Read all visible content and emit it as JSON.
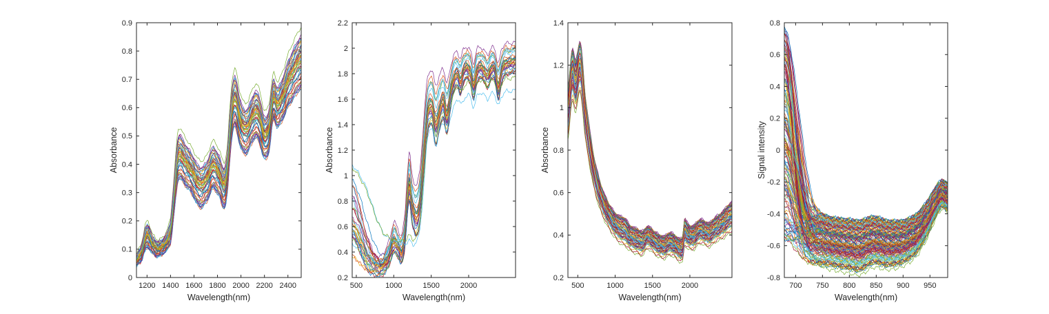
{
  "window": {
    "background": "#ffffff"
  },
  "palette": [
    "#0072BD",
    "#D95319",
    "#EDB120",
    "#7E2F8E",
    "#77AC30",
    "#4DBEEE",
    "#A2142F"
  ],
  "axis_color": "#262626",
  "chart_data": [
    {
      "type": "line",
      "title": "",
      "xlabel": "Wavelength(nm)",
      "ylabel": "Absorbance",
      "xlim": [
        1110,
        2513
      ],
      "ylim": [
        0,
        0.9
      ],
      "xticks": [
        1200,
        1400,
        1600,
        1800,
        2000,
        2200,
        2400
      ],
      "xtick_labels": [
        "1200",
        "1400",
        "1600",
        "1800",
        "2000",
        "2200",
        "2400"
      ],
      "yticks": [
        0,
        0.1,
        0.2,
        0.3,
        0.4,
        0.5,
        0.6,
        0.7,
        0.8,
        0.9
      ],
      "ytick_labels": [
        "0",
        "0.1",
        "0.2",
        "0.3",
        "0.4",
        "0.5",
        "0.6",
        "0.7",
        "0.8",
        "0.9"
      ],
      "grid": false,
      "legend": null,
      "n_lines": 55,
      "noise_amp": 0.0045,
      "band": {
        "x": [
          1100,
          1150,
          1200,
          1250,
          1300,
          1355,
          1400,
          1430,
          1465,
          1520,
          1580,
          1650,
          1710,
          1760,
          1810,
          1857,
          1885,
          1910,
          1930,
          1955,
          1990,
          2025,
          2060,
          2095,
          2130,
          2165,
          2200,
          2240,
          2275,
          2310,
          2350,
          2400,
          2450,
          2513
        ],
        "mean": [
          0.055,
          0.085,
          0.145,
          0.112,
          0.1,
          0.118,
          0.16,
          0.28,
          0.42,
          0.4,
          0.365,
          0.318,
          0.338,
          0.385,
          0.36,
          0.315,
          0.37,
          0.52,
          0.6,
          0.615,
          0.55,
          0.515,
          0.52,
          0.555,
          0.575,
          0.545,
          0.49,
          0.52,
          0.625,
          0.6,
          0.625,
          0.68,
          0.72,
          0.76
        ],
        "halfspread": [
          0.018,
          0.027,
          0.042,
          0.03,
          0.026,
          0.028,
          0.04,
          0.06,
          0.078,
          0.075,
          0.072,
          0.073,
          0.072,
          0.075,
          0.073,
          0.072,
          0.075,
          0.082,
          0.088,
          0.09,
          0.084,
          0.08,
          0.08,
          0.082,
          0.084,
          0.082,
          0.075,
          0.076,
          0.072,
          0.072,
          0.075,
          0.082,
          0.09,
          0.095
        ]
      },
      "outliers": [
        {
          "line": 4,
          "u": 1.3
        }
      ]
    },
    {
      "type": "line",
      "title": "",
      "xlabel": "Wavelength(nm)",
      "ylabel": "Absorbance",
      "xlim": [
        445,
        2626
      ],
      "ylim": [
        0.2,
        2.2
      ],
      "xticks": [
        500,
        1000,
        1500,
        2000
      ],
      "xtick_labels": [
        "500",
        "1000",
        "1500",
        "2000"
      ],
      "yticks": [
        0.2,
        0.4,
        0.6,
        0.8,
        1,
        1.2,
        1.4,
        1.6,
        1.8,
        2,
        2.2
      ],
      "ytick_labels": [
        "0.2",
        "0.4",
        "0.6",
        "0.8",
        "1",
        "1.2",
        "1.4",
        "1.6",
        "1.8",
        "2",
        "2.2"
      ],
      "grid": false,
      "legend": null,
      "n_lines": 30,
      "noise_amp": 0.012,
      "band": {
        "x": [
          445,
          550,
          650,
          750,
          800,
          850,
          900,
          950,
          1000,
          1050,
          1105,
          1150,
          1180,
          1210,
          1240,
          1300,
          1350,
          1400,
          1450,
          1510,
          1560,
          1610,
          1660,
          1710,
          1760,
          1800,
          1845,
          1890,
          1930,
          1980,
          2030,
          2065,
          2110,
          2160,
          2210,
          2255,
          2300,
          2345,
          2395,
          2440,
          2490,
          2540,
          2626
        ],
        "mean": [
          0.42,
          0.35,
          0.285,
          0.265,
          0.27,
          0.285,
          0.33,
          0.4,
          0.5,
          0.46,
          0.41,
          0.55,
          0.82,
          0.97,
          0.8,
          0.7,
          0.82,
          1.18,
          1.52,
          1.58,
          1.44,
          1.54,
          1.62,
          1.5,
          1.67,
          1.78,
          1.82,
          1.76,
          1.84,
          1.87,
          1.82,
          1.72,
          1.84,
          1.87,
          1.84,
          1.8,
          1.86,
          1.86,
          1.72,
          1.84,
          1.9,
          1.9,
          1.92
        ],
        "halfspread": [
          0.09,
          0.09,
          0.07,
          0.055,
          0.06,
          0.07,
          0.08,
          0.09,
          0.11,
          0.1,
          0.1,
          0.12,
          0.15,
          0.17,
          0.17,
          0.18,
          0.19,
          0.2,
          0.2,
          0.19,
          0.22,
          0.19,
          0.18,
          0.18,
          0.15,
          0.13,
          0.12,
          0.13,
          0.12,
          0.11,
          0.12,
          0.13,
          0.12,
          0.11,
          0.11,
          0.12,
          0.11,
          0.11,
          0.13,
          0.12,
          0.11,
          0.11,
          0.1
        ]
      },
      "fan": {
        "start_range": [
          0.36,
          0.96
        ],
        "decay_range": [
          150,
          320
        ]
      },
      "outliers": [
        {
          "line": 3,
          "u": 1.25
        }
      ],
      "special": [
        {
          "name": "low-cyan-line",
          "color_index": 5,
          "x": [
            445,
            550,
            650,
            750,
            850,
            950,
            1050,
            1150,
            1205,
            1270,
            1340,
            1400,
            1450,
            1510,
            1560,
            1610,
            1660,
            1710,
            1760,
            1810,
            1860,
            1910,
            1960,
            2010,
            2065,
            2110,
            2160,
            2210,
            2255,
            2300,
            2345,
            2395,
            2440,
            2490,
            2540,
            2626
          ],
          "values": [
            1.08,
            1.0,
            0.88,
            0.7,
            0.56,
            0.5,
            0.47,
            0.46,
            0.49,
            0.46,
            0.55,
            0.9,
            1.3,
            1.36,
            1.24,
            1.34,
            1.42,
            1.34,
            1.46,
            1.55,
            1.6,
            1.56,
            1.62,
            1.63,
            1.54,
            1.62,
            1.65,
            1.63,
            1.6,
            1.64,
            1.64,
            1.55,
            1.62,
            1.66,
            1.66,
            1.67
          ]
        },
        {
          "name": "low-green-line",
          "color_index": 4,
          "x": [
            445,
            550,
            650,
            750,
            850,
            950,
            1050,
            1150,
            1205,
            1270,
            1340,
            1400,
            1450,
            1510,
            1560,
            1610,
            1660,
            1710,
            1760,
            1810,
            1860,
            1910,
            1960,
            2010,
            2065,
            2110,
            2160,
            2210,
            2255,
            2300,
            2345,
            2395,
            2440,
            2490,
            2540,
            2626
          ],
          "values": [
            1.06,
            0.98,
            0.86,
            0.69,
            0.56,
            0.51,
            0.49,
            0.49,
            0.53,
            0.5,
            0.6,
            0.97,
            1.37,
            1.44,
            1.32,
            1.43,
            1.51,
            1.44,
            1.56,
            1.65,
            1.7,
            1.66,
            1.72,
            1.73,
            1.64,
            1.72,
            1.75,
            1.73,
            1.7,
            1.74,
            1.74,
            1.65,
            1.72,
            1.76,
            1.76,
            1.77
          ]
        }
      ]
    },
    {
      "type": "line",
      "title": "",
      "xlabel": "Wavelength(nm)",
      "ylabel": "Absorbance",
      "xlim": [
        368,
        2563
      ],
      "ylim": [
        0.2,
        1.4
      ],
      "xticks": [
        500,
        1000,
        1500,
        2000
      ],
      "xtick_labels": [
        "500",
        "1000",
        "1500",
        "2000"
      ],
      "yticks": [
        0.2,
        0.4,
        0.6,
        0.8,
        1,
        1.2,
        1.4
      ],
      "ytick_labels": [
        "0.2",
        "0.4",
        "0.6",
        "0.8",
        "1",
        "1.2",
        "1.4"
      ],
      "grid": false,
      "legend": null,
      "n_lines": 70,
      "noise_amp": 0.005,
      "band": {
        "x": [
          368,
          425,
          470,
          535,
          600,
          700,
          800,
          900,
          1000,
          1090,
          1130,
          1200,
          1300,
          1360,
          1430,
          1470,
          1530,
          1600,
          1660,
          1720,
          1780,
          1850,
          1905,
          1925,
          1960,
          2010,
          2060,
          2110,
          2160,
          2210,
          2260,
          2310,
          2360,
          2410,
          2460,
          2510,
          2563
        ],
        "mean": [
          1.0,
          1.185,
          1.13,
          1.22,
          0.98,
          0.745,
          0.6,
          0.515,
          0.46,
          0.437,
          0.43,
          0.4,
          0.385,
          0.375,
          0.4,
          0.395,
          0.375,
          0.36,
          0.355,
          0.37,
          0.365,
          0.345,
          0.35,
          0.425,
          0.415,
          0.4,
          0.405,
          0.425,
          0.43,
          0.42,
          0.415,
          0.43,
          0.445,
          0.455,
          0.47,
          0.49,
          0.5
        ],
        "halfspread": [
          0.1,
          0.105,
          0.1,
          0.1,
          0.085,
          0.065,
          0.055,
          0.05,
          0.05,
          0.055,
          0.055,
          0.05,
          0.05,
          0.048,
          0.045,
          0.045,
          0.045,
          0.045,
          0.045,
          0.045,
          0.045,
          0.045,
          0.05,
          0.055,
          0.05,
          0.048,
          0.048,
          0.048,
          0.048,
          0.048,
          0.048,
          0.05,
          0.05,
          0.052,
          0.055,
          0.058,
          0.06
        ]
      },
      "outliers": [
        {
          "line": 4,
          "u": -1.5
        },
        {
          "line": 6,
          "u": -1.35
        },
        {
          "line": 2,
          "u": -1.2
        }
      ]
    },
    {
      "type": "line",
      "title": "",
      "xlabel": "Wavelength(nm)",
      "ylabel": "Signal intensity",
      "xlim": [
        679,
        983
      ],
      "ylim": [
        -0.8,
        0.8
      ],
      "xticks": [
        700,
        750,
        800,
        850,
        900,
        950
      ],
      "xtick_labels": [
        "700",
        "750",
        "800",
        "850",
        "900",
        "950"
      ],
      "yticks": [
        -0.8,
        -0.6,
        -0.4,
        -0.2,
        0,
        0.2,
        0.4,
        0.6,
        0.8
      ],
      "ytick_labels": [
        "-0.8",
        "-0.6",
        "-0.4",
        "-0.2",
        "0",
        "0.2",
        "0.4",
        "0.6",
        "0.8"
      ],
      "grid": false,
      "legend": null,
      "n_lines": 140,
      "noise_amp": 0.009,
      "band": {
        "x": [
          679,
          700,
          720,
          745,
          770,
          800,
          820,
          845,
          870,
          900,
          925,
          945,
          960,
          972,
          983
        ],
        "mean": [
          -0.5,
          -0.55,
          -0.575,
          -0.565,
          -0.578,
          -0.592,
          -0.6,
          -0.565,
          -0.585,
          -0.575,
          -0.525,
          -0.43,
          -0.33,
          -0.275,
          -0.295
        ],
        "halfspread": [
          0.1,
          0.125,
          0.145,
          0.16,
          0.155,
          0.158,
          0.16,
          0.15,
          0.145,
          0.135,
          0.125,
          0.11,
          0.095,
          0.085,
          0.085
        ]
      },
      "fan": {
        "start_range": [
          -0.6,
          0.78
        ],
        "decay_range": [
          20,
          42
        ]
      },
      "outliers": [
        {
          "line": 4,
          "u": -1.15
        }
      ]
    }
  ]
}
